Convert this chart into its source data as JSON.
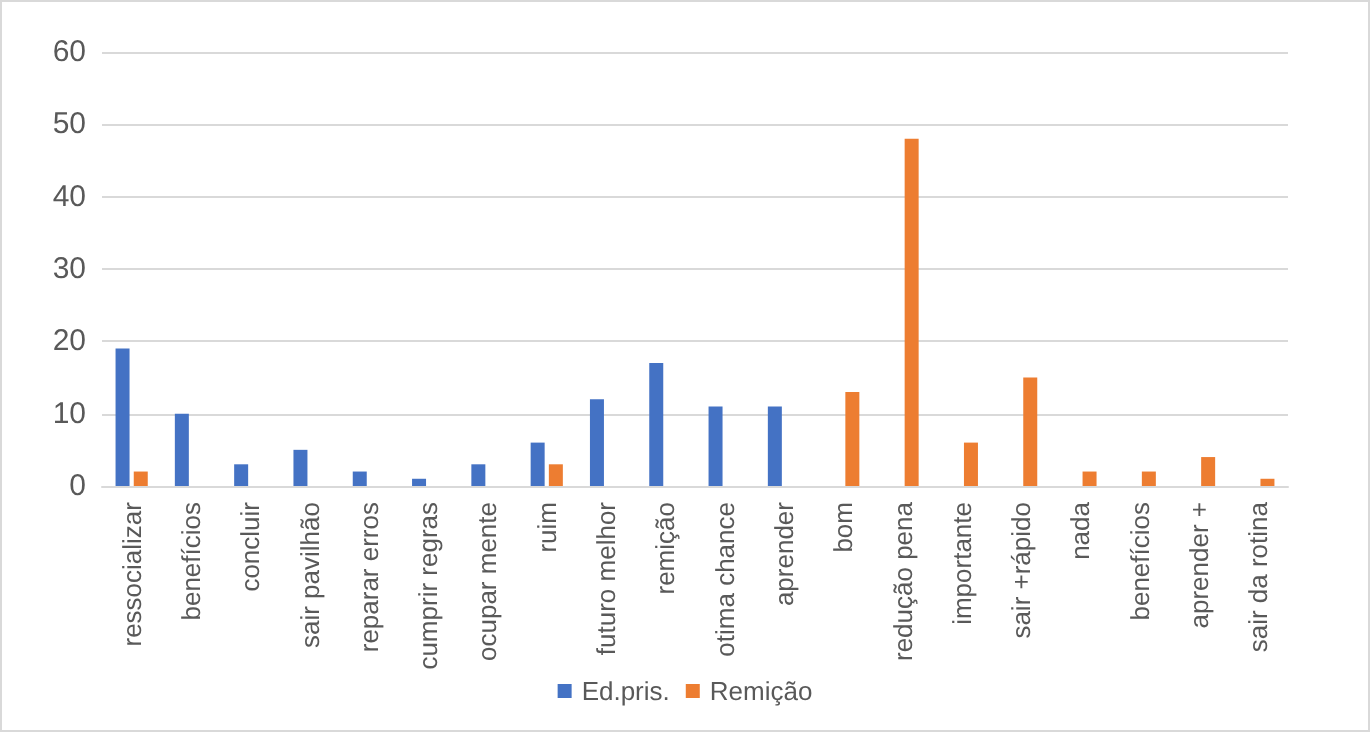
{
  "chart_data": {
    "type": "bar",
    "categories": [
      "ressocializar",
      "benefícios",
      "concluir",
      "sair pavilhão",
      "reparar erros",
      "cumprir regras",
      "ocupar mente",
      "ruim",
      "futuro melhor",
      "remição",
      "otima chance",
      "aprender",
      "bom",
      "redução pena",
      "importante",
      "sair +rápido",
      "nada",
      "benefícios",
      "aprender +",
      "sair da rotina"
    ],
    "series": [
      {
        "name": "Ed.pris.",
        "color": "#4472c4",
        "values": [
          19,
          10,
          3,
          5,
          2,
          1,
          3,
          6,
          12,
          17,
          11,
          11,
          null,
          null,
          null,
          null,
          null,
          null,
          null,
          null
        ]
      },
      {
        "name": "Remição",
        "color": "#ed7d31",
        "values": [
          2,
          null,
          null,
          null,
          null,
          null,
          null,
          3,
          null,
          null,
          null,
          null,
          13,
          48,
          6,
          15,
          2,
          2,
          4,
          1
        ]
      }
    ],
    "ylim": [
      0,
      60
    ],
    "yticks": [
      0,
      10,
      20,
      30,
      40,
      50,
      60
    ],
    "grid": "y",
    "legend": "bottom"
  }
}
